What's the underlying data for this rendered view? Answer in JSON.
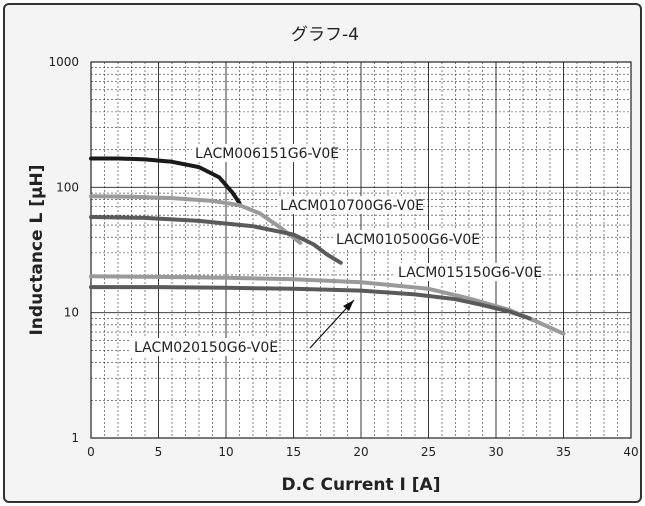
{
  "chart_data": {
    "type": "line",
    "title": "グラフ-4",
    "xlabel": "D.C Current I [A]",
    "ylabel": "Inductance L [μH]",
    "xlim": [
      0,
      40
    ],
    "ylim": [
      1,
      1000
    ],
    "yscale": "log",
    "xticks": [
      0,
      5,
      10,
      15,
      20,
      25,
      30,
      35,
      40
    ],
    "yticks": [
      1,
      10,
      100,
      1000
    ],
    "grid": true,
    "legend": "inline labels",
    "series": [
      {
        "name": "LACM006151G6-V0E",
        "color": "#1a1a1a",
        "points": [
          [
            0,
            170
          ],
          [
            2,
            170
          ],
          [
            4,
            167
          ],
          [
            6,
            160
          ],
          [
            8,
            145
          ],
          [
            9.5,
            120
          ],
          [
            10.5,
            90
          ],
          [
            11,
            75
          ]
        ]
      },
      {
        "name": "LACM010700G6-V0E",
        "color": "#9a9a9a",
        "points": [
          [
            0,
            85
          ],
          [
            3,
            84
          ],
          [
            6,
            82
          ],
          [
            9,
            78
          ],
          [
            11,
            72
          ],
          [
            12.5,
            62
          ],
          [
            14,
            48
          ],
          [
            15.5,
            36
          ]
        ]
      },
      {
        "name": "LACM010500G6-V0E",
        "color": "#5a5a5a",
        "points": [
          [
            0,
            58
          ],
          [
            4,
            57
          ],
          [
            8,
            54
          ],
          [
            12,
            49
          ],
          [
            15,
            42
          ],
          [
            16.5,
            35
          ],
          [
            17.5,
            29
          ],
          [
            18.5,
            25
          ]
        ]
      },
      {
        "name": "LACM015150G6-V0E",
        "color": "#9a9a9a",
        "points": [
          [
            0,
            19.5
          ],
          [
            5,
            19.3
          ],
          [
            10,
            19
          ],
          [
            15,
            18.5
          ],
          [
            20,
            17.5
          ],
          [
            25,
            15.5
          ],
          [
            28,
            13
          ],
          [
            31,
            10.5
          ],
          [
            33,
            8.5
          ],
          [
            35,
            6.8
          ]
        ]
      },
      {
        "name": "LACM020150G6-V0E",
        "color": "#5a5a5a",
        "points": [
          [
            0,
            16
          ],
          [
            5,
            16
          ],
          [
            10,
            15.8
          ],
          [
            15,
            15.5
          ],
          [
            20,
            15
          ],
          [
            24,
            14
          ],
          [
            27,
            12.8
          ],
          [
            29,
            11.5
          ],
          [
            31,
            10.2
          ],
          [
            32.5,
            9
          ]
        ]
      }
    ]
  }
}
